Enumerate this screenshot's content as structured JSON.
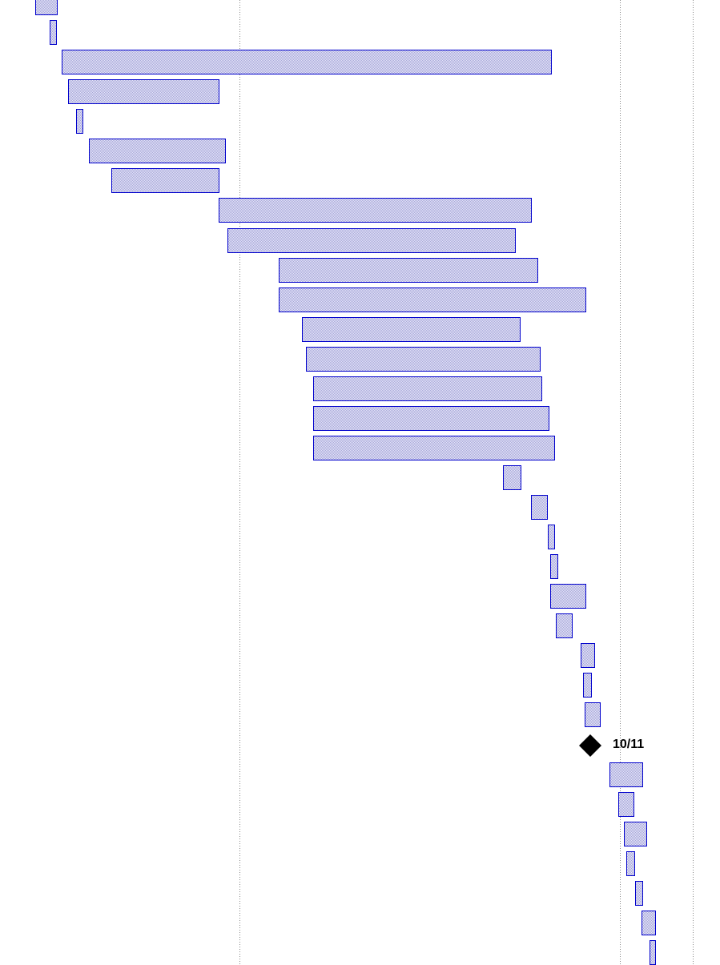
{
  "milestone": {
    "label": "10/11"
  }
}
